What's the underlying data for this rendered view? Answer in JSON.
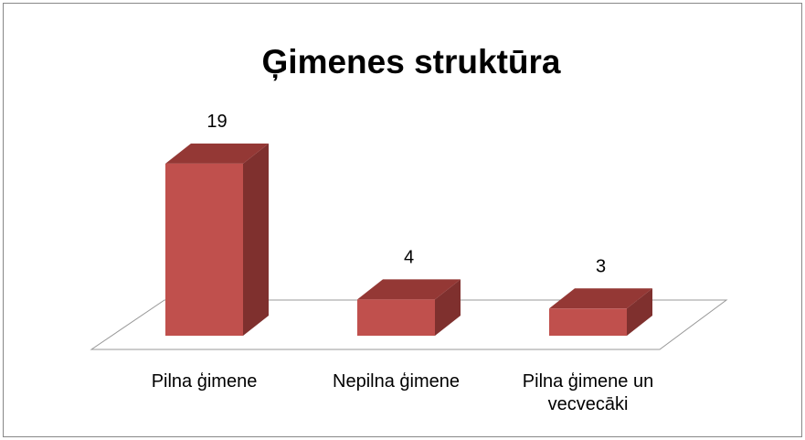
{
  "chart_data": {
    "type": "bar",
    "title": "Ģimenes struktūra",
    "categories": [
      "Pilna ģimene",
      "Nepilna ģimene",
      "Pilna ģimene un vecvecāki"
    ],
    "values": [
      19,
      4,
      3
    ],
    "color": "#c0504d"
  }
}
